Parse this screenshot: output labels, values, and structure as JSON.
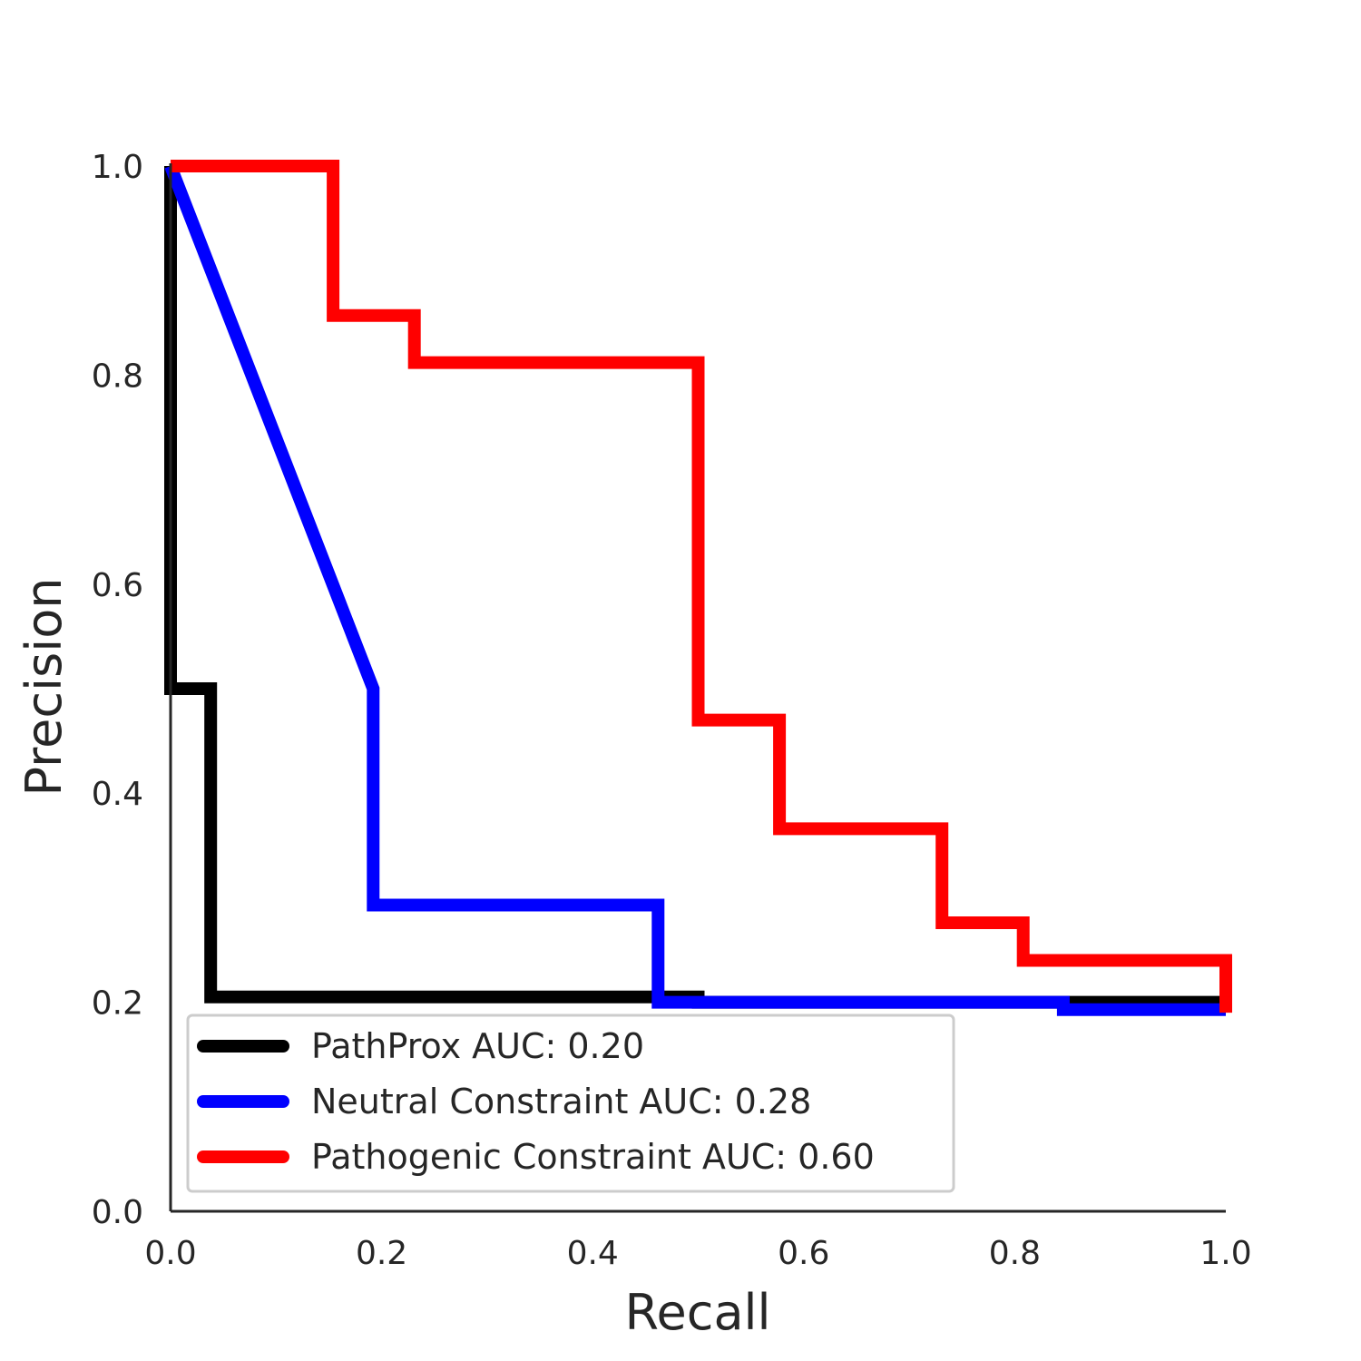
{
  "chart_data": {
    "type": "line",
    "title": "",
    "xlabel": "Recall",
    "ylabel": "Precision",
    "xlim": [
      0,
      1
    ],
    "ylim": [
      0,
      1
    ],
    "xticks": [
      "0.0",
      "0.2",
      "0.4",
      "0.6",
      "0.8",
      "1.0"
    ],
    "yticks": [
      "0.0",
      "0.2",
      "0.4",
      "0.6",
      "0.8",
      "1.0"
    ],
    "grid": false,
    "legend_position": "lower-left",
    "series": [
      {
        "name": "PathProx AUC:  0.20",
        "color": "#000000",
        "drawstyle": "steps",
        "points": [
          [
            0.0,
            1.0
          ],
          [
            0.0,
            0.5
          ],
          [
            0.038,
            0.5
          ],
          [
            0.038,
            0.205
          ],
          [
            0.5,
            0.205
          ],
          [
            0.5,
            0.2
          ],
          [
            1.0,
            0.2
          ]
        ]
      },
      {
        "name": "Neutral Constraint AUC:  0.28",
        "color": "#0000ff",
        "drawstyle": "line",
        "points": [
          [
            0.0,
            1.0
          ],
          [
            0.192,
            0.5
          ],
          [
            0.192,
            0.293
          ],
          [
            0.462,
            0.293
          ],
          [
            0.462,
            0.2
          ],
          [
            0.846,
            0.2
          ],
          [
            0.846,
            0.193
          ],
          [
            1.0,
            0.193
          ]
        ]
      },
      {
        "name": "Pathogenic Constraint AUC:  0.60",
        "color": "#ff0000",
        "drawstyle": "steps",
        "points": [
          [
            0.0,
            1.0
          ],
          [
            0.154,
            1.0
          ],
          [
            0.154,
            0.857
          ],
          [
            0.231,
            0.857
          ],
          [
            0.231,
            0.812
          ],
          [
            0.5,
            0.812
          ],
          [
            0.5,
            0.47
          ],
          [
            0.577,
            0.47
          ],
          [
            0.577,
            0.366
          ],
          [
            0.731,
            0.366
          ],
          [
            0.731,
            0.276
          ],
          [
            0.808,
            0.276
          ],
          [
            0.808,
            0.24
          ],
          [
            1.0,
            0.24
          ],
          [
            1.0,
            0.19
          ]
        ]
      }
    ]
  }
}
